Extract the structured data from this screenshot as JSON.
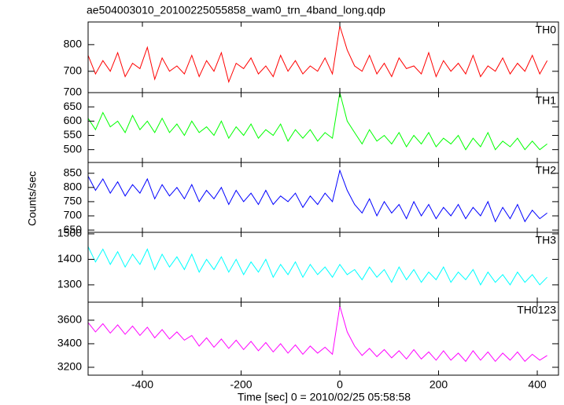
{
  "figure": {
    "title": "ae504003010_20100225055858_wam0_trn_4band_long.qdp",
    "x_label": "Time [sec] 0 = 2010/02/25 05:58:58",
    "y_label": "Counts/sec"
  },
  "chart_data": [
    {
      "type": "line",
      "label": "TH0",
      "color": "#ff0000",
      "x": [
        -510,
        -495,
        -480,
        -465,
        -450,
        -435,
        -420,
        -405,
        -390,
        -375,
        -360,
        -345,
        -330,
        -315,
        -300,
        -285,
        -270,
        -255,
        -240,
        -225,
        -210,
        -195,
        -180,
        -165,
        -150,
        -135,
        -120,
        -105,
        -90,
        -75,
        -60,
        -45,
        -30,
        -15,
        0,
        15,
        30,
        45,
        60,
        75,
        90,
        105,
        120,
        135,
        150,
        165,
        180,
        195,
        210,
        225,
        240,
        255,
        270,
        285,
        300,
        315,
        330,
        345,
        360,
        375,
        390,
        405,
        420
      ],
      "values": [
        760,
        690,
        740,
        700,
        770,
        680,
        730,
        710,
        790,
        670,
        750,
        700,
        720,
        690,
        760,
        680,
        740,
        700,
        770,
        660,
        730,
        710,
        750,
        690,
        720,
        680,
        760,
        700,
        740,
        690,
        720,
        700,
        750,
        690,
        870,
        780,
        720,
        700,
        760,
        690,
        730,
        680,
        750,
        710,
        720,
        690,
        770,
        680,
        740,
        700,
        730,
        690,
        760,
        680,
        720,
        700,
        750,
        690,
        730,
        700,
        760,
        690,
        740
      ],
      "xlim": [
        -510,
        443
      ],
      "xticks": [
        -400,
        -200,
        0,
        200,
        400
      ],
      "ylim": [
        620,
        885
      ],
      "yticks": [
        700,
        800
      ]
    },
    {
      "type": "line",
      "label": "TH1",
      "color": "#00ff00",
      "x": [
        -510,
        -495,
        -480,
        -465,
        -450,
        -435,
        -420,
        -405,
        -390,
        -375,
        -360,
        -345,
        -330,
        -315,
        -300,
        -285,
        -270,
        -255,
        -240,
        -225,
        -210,
        -195,
        -180,
        -165,
        -150,
        -135,
        -120,
        -105,
        -90,
        -75,
        -60,
        -45,
        -30,
        -15,
        0,
        15,
        30,
        45,
        60,
        75,
        90,
        105,
        120,
        135,
        150,
        165,
        180,
        195,
        210,
        225,
        240,
        255,
        270,
        285,
        300,
        315,
        330,
        345,
        360,
        375,
        390,
        405,
        420
      ],
      "values": [
        610,
        570,
        630,
        580,
        600,
        560,
        620,
        570,
        600,
        560,
        610,
        560,
        590,
        550,
        600,
        560,
        580,
        550,
        600,
        540,
        580,
        550,
        590,
        540,
        570,
        550,
        590,
        530,
        570,
        540,
        570,
        530,
        560,
        540,
        700,
        600,
        560,
        520,
        570,
        530,
        550,
        520,
        560,
        510,
        550,
        520,
        560,
        510,
        540,
        520,
        550,
        500,
        540,
        510,
        560,
        500,
        530,
        510,
        540,
        500,
        530,
        500,
        520
      ],
      "xlim": [
        -510,
        443
      ],
      "xticks": [
        -400,
        -200,
        0,
        200,
        400
      ],
      "ylim": [
        455,
        700
      ],
      "yticks": [
        500,
        550,
        600,
        650,
        700
      ]
    },
    {
      "type": "line",
      "label": "TH2",
      "color": "#0000ff",
      "x": [
        -510,
        -495,
        -480,
        -465,
        -450,
        -435,
        -420,
        -405,
        -390,
        -375,
        -360,
        -345,
        -330,
        -315,
        -300,
        -285,
        -270,
        -255,
        -240,
        -225,
        -210,
        -195,
        -180,
        -165,
        -150,
        -135,
        -120,
        -105,
        -90,
        -75,
        -60,
        -45,
        -30,
        -15,
        0,
        15,
        30,
        45,
        60,
        75,
        90,
        105,
        120,
        135,
        150,
        165,
        180,
        195,
        210,
        225,
        240,
        255,
        270,
        285,
        300,
        315,
        330,
        345,
        360,
        375,
        390,
        405,
        420
      ],
      "values": [
        840,
        790,
        830,
        780,
        820,
        770,
        810,
        780,
        830,
        760,
        810,
        770,
        800,
        760,
        810,
        750,
        790,
        760,
        800,
        740,
        790,
        750,
        780,
        740,
        790,
        740,
        770,
        750,
        780,
        730,
        770,
        740,
        780,
        750,
        860,
        790,
        740,
        710,
        760,
        700,
        750,
        710,
        740,
        690,
        750,
        700,
        740,
        690,
        730,
        700,
        740,
        690,
        730,
        700,
        750,
        680,
        730,
        690,
        740,
        680,
        720,
        690,
        710
      ],
      "xlim": [
        -510,
        443
      ],
      "xticks": [
        -400,
        -200,
        0,
        200,
        400
      ],
      "ylim": [
        642,
        888
      ],
      "yticks": [
        650,
        700,
        750,
        800,
        850
      ]
    },
    {
      "type": "line",
      "label": "TH3",
      "color": "#00ffff",
      "x": [
        -510,
        -495,
        -480,
        -465,
        -450,
        -435,
        -420,
        -405,
        -390,
        -375,
        -360,
        -345,
        -330,
        -315,
        -300,
        -285,
        -270,
        -255,
        -240,
        -225,
        -210,
        -195,
        -180,
        -165,
        -150,
        -135,
        -120,
        -105,
        -90,
        -75,
        -60,
        -45,
        -30,
        -15,
        0,
        15,
        30,
        45,
        60,
        75,
        90,
        105,
        120,
        135,
        150,
        165,
        180,
        195,
        210,
        225,
        240,
        255,
        270,
        285,
        300,
        315,
        330,
        345,
        360,
        375,
        390,
        405,
        420
      ],
      "values": [
        1450,
        1390,
        1440,
        1380,
        1430,
        1370,
        1420,
        1380,
        1440,
        1360,
        1420,
        1370,
        1410,
        1360,
        1420,
        1350,
        1400,
        1360,
        1410,
        1350,
        1400,
        1340,
        1390,
        1350,
        1400,
        1330,
        1380,
        1340,
        1390,
        1330,
        1380,
        1340,
        1370,
        1330,
        1380,
        1340,
        1360,
        1320,
        1370,
        1330,
        1360,
        1310,
        1370,
        1320,
        1360,
        1310,
        1350,
        1320,
        1370,
        1310,
        1350,
        1320,
        1360,
        1300,
        1350,
        1310,
        1340,
        1300,
        1350,
        1310,
        1340,
        1300,
        1330
      ],
      "xlim": [
        -510,
        443
      ],
      "xticks": [
        -400,
        -200,
        0,
        200,
        400
      ],
      "ylim": [
        1232,
        1506
      ],
      "yticks": [
        1300,
        1400,
        1500
      ]
    },
    {
      "type": "line",
      "label": "TH0123",
      "color": "#ff00ff",
      "x": [
        -510,
        -495,
        -480,
        -465,
        -450,
        -435,
        -420,
        -405,
        -390,
        -375,
        -360,
        -345,
        -330,
        -315,
        -300,
        -285,
        -270,
        -255,
        -240,
        -225,
        -210,
        -195,
        -180,
        -165,
        -150,
        -135,
        -120,
        -105,
        -90,
        -75,
        -60,
        -45,
        -30,
        -15,
        0,
        15,
        30,
        45,
        60,
        75,
        90,
        105,
        120,
        135,
        150,
        165,
        180,
        195,
        210,
        225,
        240,
        255,
        270,
        285,
        300,
        315,
        330,
        345,
        360,
        375,
        390,
        405,
        420
      ],
      "values": [
        3580,
        3500,
        3570,
        3490,
        3560,
        3480,
        3550,
        3470,
        3540,
        3450,
        3520,
        3440,
        3500,
        3430,
        3470,
        3380,
        3450,
        3370,
        3440,
        3360,
        3430,
        3350,
        3420,
        3340,
        3410,
        3330,
        3400,
        3320,
        3390,
        3310,
        3380,
        3320,
        3370,
        3310,
        3720,
        3500,
        3380,
        3300,
        3360,
        3290,
        3350,
        3280,
        3340,
        3270,
        3350,
        3270,
        3330,
        3260,
        3340,
        3260,
        3320,
        3250,
        3340,
        3260,
        3330,
        3250,
        3320,
        3260,
        3330,
        3250,
        3310,
        3260,
        3300
      ],
      "xlim": [
        -510,
        443
      ],
      "xticks": [
        -400,
        -200,
        0,
        200,
        400
      ],
      "ylim": [
        3133,
        3753
      ],
      "yticks": [
        3200,
        3400,
        3600
      ]
    }
  ]
}
